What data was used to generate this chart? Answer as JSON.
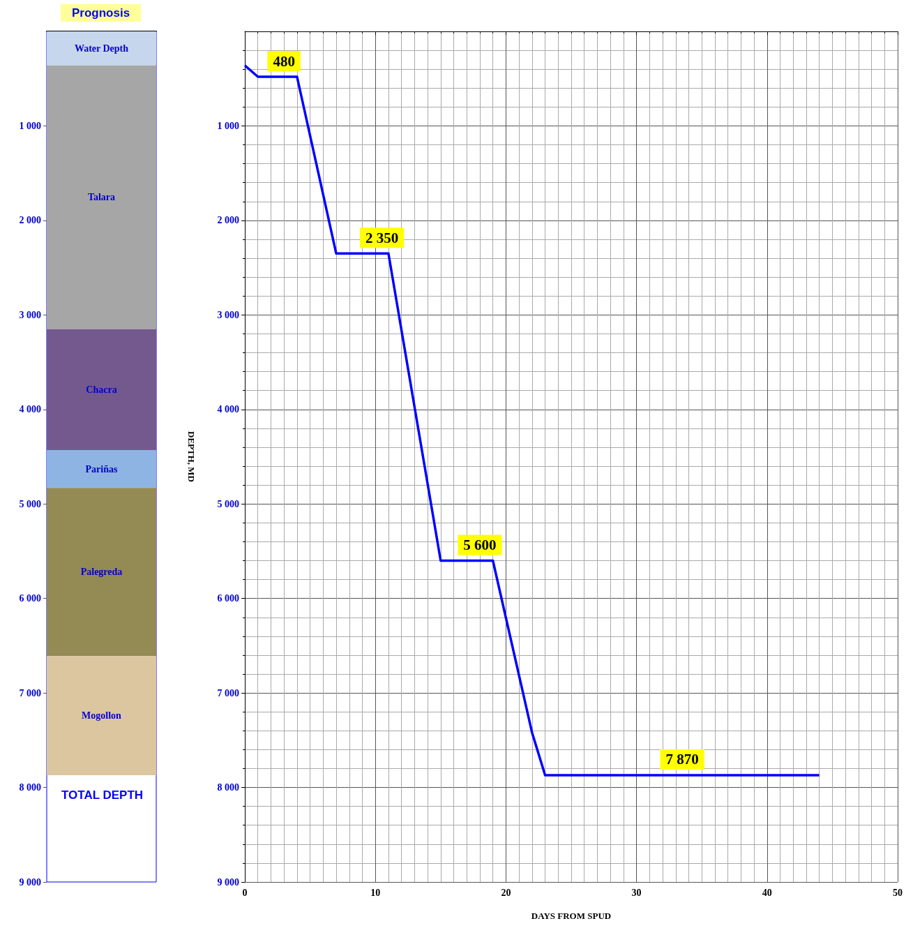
{
  "chart_data": [
    {
      "type": "bar",
      "title": "Prognosis",
      "stacked": true,
      "categories": [
        null
      ],
      "tick_labels": "y",
      "ylim": [
        9000,
        0
      ],
      "yticks": [
        {
          "value": 1000,
          "label": "1 000"
        },
        {
          "value": 2000,
          "label": "2 000"
        },
        {
          "value": 3000,
          "label": "3 000"
        },
        {
          "value": 4000,
          "label": "4 000"
        },
        {
          "value": 5000,
          "label": "5 000"
        },
        {
          "value": 6000,
          "label": "6 000"
        },
        {
          "value": 7000,
          "label": "7 000"
        },
        {
          "value": 8000,
          "label": "8 000"
        },
        {
          "value": 9000,
          "label": "9 000"
        }
      ],
      "series": [
        {
          "name": "Water Depth",
          "color": "#c6d6ec",
          "values": [
            360
          ]
        },
        {
          "name": "Talara",
          "color": "#a6a6a6",
          "values": [
            2790
          ]
        },
        {
          "name": "Chacra",
          "color": "#74598f",
          "values": [
            1280
          ]
        },
        {
          "name": "Pariñas",
          "color": "#8eb4e3",
          "values": [
            400
          ]
        },
        {
          "name": "Palegreda",
          "color": "#948a54",
          "values": [
            1780
          ]
        },
        {
          "name": "Mogollon",
          "color": "#dcc6a0",
          "values": [
            1260
          ]
        }
      ],
      "annotations": [
        "TOTAL DEPTH"
      ]
    },
    {
      "type": "line",
      "xlabel": "DAYS FROM SPUD",
      "ylabel": "DEPTH, MD",
      "grid": true,
      "marker": "none",
      "line_style": "solid",
      "xlim": [
        0,
        50
      ],
      "xticks": [
        0,
        10,
        20,
        30,
        40,
        50
      ],
      "ylim": [
        9000,
        0
      ],
      "yticks": [
        {
          "value": 1000,
          "label": "1 000"
        },
        {
          "value": 2000,
          "label": "2 000"
        },
        {
          "value": 3000,
          "label": "3 000"
        },
        {
          "value": 4000,
          "label": "4 000"
        },
        {
          "value": 5000,
          "label": "5 000"
        },
        {
          "value": 6000,
          "label": "6 000"
        },
        {
          "value": 7000,
          "label": "7 000"
        },
        {
          "value": 8000,
          "label": "8 000"
        },
        {
          "value": 9000,
          "label": "9 000"
        }
      ],
      "series": [
        {
          "color": "#0000ff",
          "x": [
            0,
            1,
            4,
            7,
            11,
            15,
            19,
            22,
            23,
            44
          ],
          "values": [
            360,
            480,
            480,
            2350,
            2350,
            5600,
            5600,
            7420,
            7870,
            7870
          ]
        }
      ],
      "annotations": [
        {
          "text": "480",
          "x": 3,
          "y": 480
        },
        {
          "text": "2 350",
          "x": 10.5,
          "y": 2350
        },
        {
          "text": "5 600",
          "x": 18,
          "y": 5600
        },
        {
          "text": "7 870",
          "x": 33.5,
          "y": 7870
        }
      ]
    }
  ]
}
